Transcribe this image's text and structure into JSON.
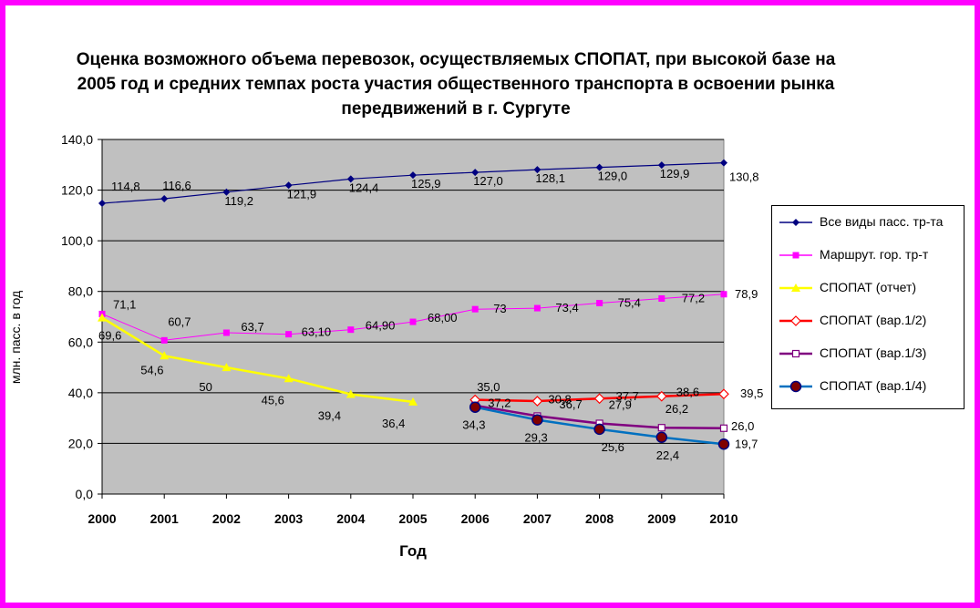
{
  "chart_data": {
    "type": "line",
    "title": "Оценка возможного объема перевозок, осуществляемых СПОПАТ, при высокой базе на 2005 год и средних темпах роста участия общественного транспорта в освоении рынка передвижений в г. Сургуте",
    "xlabel": "Год",
    "ylabel": "млн. пасс. в год",
    "x": [
      "2000",
      "2001",
      "2002",
      "2003",
      "2004",
      "2005",
      "2006",
      "2007",
      "2008",
      "2009",
      "2010"
    ],
    "ylim": [
      0,
      140
    ],
    "yticks": [
      "0,0",
      "20,0",
      "40,0",
      "60,0",
      "80,0",
      "100,0",
      "120,0",
      "140,0"
    ],
    "grid": true,
    "legend_position": "right",
    "series": [
      {
        "name": "Все виды пасс. тр-та",
        "color": "#000080",
        "marker": "diamond",
        "points": [
          [
            0,
            114.8
          ],
          [
            1,
            116.6
          ],
          [
            2,
            119.2
          ],
          [
            3,
            121.9
          ],
          [
            4,
            124.4
          ],
          [
            5,
            125.9
          ],
          [
            6,
            127.0
          ],
          [
            7,
            128.1
          ],
          [
            8,
            129.0
          ],
          [
            9,
            129.9
          ],
          [
            10,
            130.8
          ]
        ],
        "labels": [
          "114,8",
          "116,6",
          "119,2",
          "121,9",
          "124,4",
          "125,9",
          "127,0",
          "128,1",
          "129,0",
          "129,9",
          "130,8"
        ]
      },
      {
        "name": "Маршрут. гор. тр-т",
        "color": "#ff00ff",
        "marker": "square",
        "points": [
          [
            0,
            71.1
          ],
          [
            1,
            60.7
          ],
          [
            2,
            63.7
          ],
          [
            3,
            63.1
          ],
          [
            4,
            64.9
          ],
          [
            5,
            68.0
          ],
          [
            6,
            73.0
          ],
          [
            7,
            73.4
          ],
          [
            8,
            75.4
          ],
          [
            9,
            77.2
          ],
          [
            10,
            78.9
          ]
        ],
        "labels": [
          "71,1",
          "60,7",
          "63,7",
          "63,10",
          "64,90",
          "68,00",
          "73",
          "73,4",
          "75,4",
          "77,2",
          "78,9"
        ]
      },
      {
        "name": "СПОПАТ (отчет)",
        "color": "#ffff00",
        "marker": "triangle",
        "points": [
          [
            0,
            69.6
          ],
          [
            1,
            54.6
          ],
          [
            2,
            50
          ],
          [
            3,
            45.6
          ],
          [
            4,
            39.4
          ],
          [
            5,
            36.4
          ]
        ],
        "labels": [
          "69,6",
          "54,6",
          "50",
          "45,6",
          "39,4",
          "36,4"
        ]
      },
      {
        "name": "СПОПАТ (вар.1/2)",
        "color": "#ff0000",
        "marker": "diamond-open",
        "points": [
          [
            6,
            37.2
          ],
          [
            7,
            36.7
          ],
          [
            8,
            37.7
          ],
          [
            9,
            38.6
          ],
          [
            10,
            39.5
          ]
        ],
        "labels": [
          "37,2",
          "36,7",
          "37,7",
          "38,6",
          "39,5"
        ]
      },
      {
        "name": "СПОПАТ (вар.1/3)",
        "color": "#800080",
        "marker": "square-open",
        "points": [
          [
            6,
            35.0
          ],
          [
            7,
            30.8
          ],
          [
            8,
            27.9
          ],
          [
            9,
            26.2
          ],
          [
            10,
            26.0
          ]
        ],
        "labels": [
          "35,0",
          "30,8",
          "27,9",
          "26,2",
          "26,0"
        ]
      },
      {
        "name": "СПОПАТ (вар.1/4)",
        "color": "#0070c0",
        "marker": "circle",
        "points": [
          [
            6,
            34.3
          ],
          [
            7,
            29.3
          ],
          [
            8,
            25.6
          ],
          [
            9,
            22.4
          ],
          [
            10,
            19.7
          ]
        ],
        "labels": [
          "34,3",
          "29,3",
          "25,6",
          "22,4",
          "19,7"
        ]
      }
    ]
  }
}
